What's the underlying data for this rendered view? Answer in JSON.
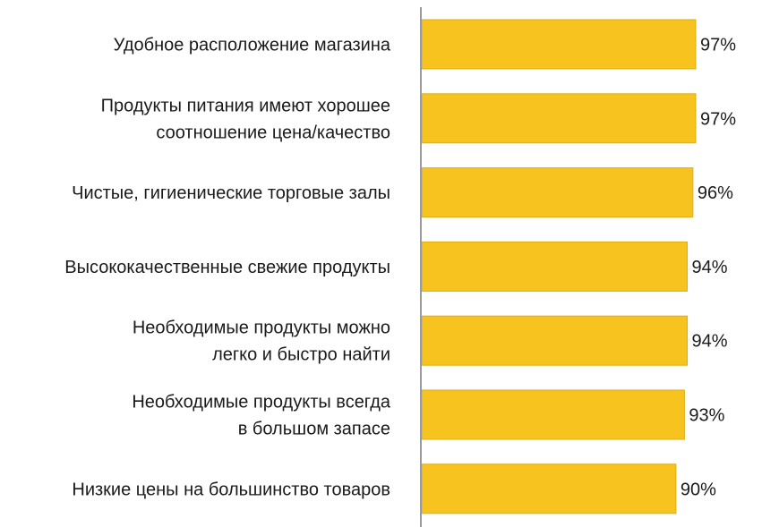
{
  "chart_data": {
    "type": "bar",
    "orientation": "horizontal",
    "categories": [
      [
        "Удобное расположение магазина"
      ],
      [
        "Продукты питания имеют хорошее",
        "соотношение цена/качество"
      ],
      [
        "Чистые, гигиенические торговые залы"
      ],
      [
        "Высококачественные свежие продукты"
      ],
      [
        "Необходимые продукты можно",
        "легко и быстро найти"
      ],
      [
        "Необходимые продукты всегда",
        "в большом запасе"
      ],
      [
        "Низкие цены на большинство товаров"
      ]
    ],
    "values": [
      97,
      97,
      96,
      94,
      94,
      93,
      90
    ],
    "value_labels": [
      "97%",
      "97%",
      "96%",
      "94%",
      "94%",
      "93%",
      "90%"
    ],
    "bar_color": "#F7C31E",
    "bar_edge_color": "#E0AE12",
    "axis_color": "#9a9a9a",
    "grid": false,
    "legend": "none"
  }
}
